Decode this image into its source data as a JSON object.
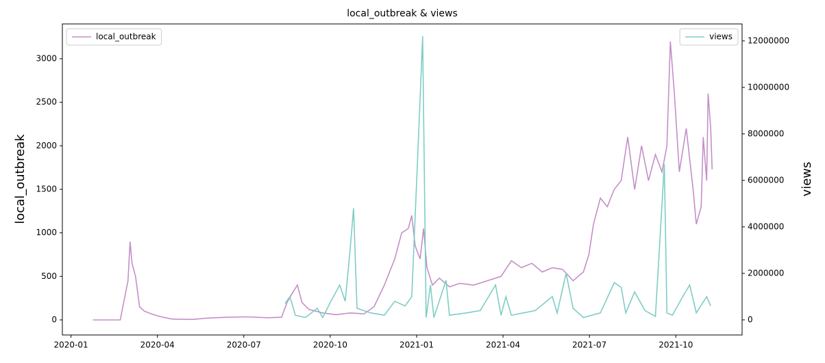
{
  "chart_data": {
    "type": "line",
    "title": "local_outbreak & views",
    "ylabel": "local_outbreak",
    "y2label": "views",
    "xlim": [
      -0.3,
      23.3
    ],
    "xticks": [
      {
        "value": 0,
        "label": "2020-01"
      },
      {
        "value": 3,
        "label": "2020-04"
      },
      {
        "value": 6,
        "label": "2020-07"
      },
      {
        "value": 9,
        "label": "2020-10"
      },
      {
        "value": 12,
        "label": "2021-01"
      },
      {
        "value": 15,
        "label": "2021-04"
      },
      {
        "value": 18,
        "label": "2021-07"
      },
      {
        "value": 21,
        "label": "2021-10"
      }
    ],
    "ylim": [
      -173,
      3400
    ],
    "yticks": [
      0,
      500,
      1000,
      1500,
      2000,
      2500,
      3000
    ],
    "y2lim": [
      -650000,
      12730000
    ],
    "y2ticks": [
      0,
      2000000,
      4000000,
      6000000,
      8000000,
      10000000,
      12000000
    ],
    "series": [
      {
        "name": "local_outbreak",
        "color": "#c38fc6",
        "legend": "upper left",
        "x": [
          0.76,
          1.71,
          1.83,
          1.98,
          2.05,
          2.12,
          2.24,
          2.38,
          2.55,
          2.79,
          3.07,
          3.5,
          4.21,
          4.69,
          5.4,
          6.12,
          6.83,
          7.31,
          7.5,
          7.67,
          7.86,
          8.02,
          8.26,
          8.74,
          9.21,
          9.69,
          10.17,
          10.52,
          10.88,
          11.24,
          11.48,
          11.71,
          11.83,
          11.95,
          12.12,
          12.24,
          12.36,
          12.55,
          12.79,
          13.14,
          13.5,
          13.98,
          14.45,
          14.93,
          15.29,
          15.64,
          16.0,
          16.36,
          16.71,
          17.07,
          17.43,
          17.79,
          17.98,
          18.14,
          18.38,
          18.62,
          18.86,
          19.1,
          19.33,
          19.57,
          19.81,
          20.05,
          20.29,
          20.52,
          20.69,
          20.81,
          20.95,
          21.12,
          21.36,
          21.6,
          21.71,
          21.88,
          21.95,
          22.07,
          22.12,
          22.21,
          22.26
        ],
        "values": [
          0,
          0,
          200,
          450,
          900,
          650,
          500,
          150,
          100,
          70,
          40,
          10,
          5,
          20,
          30,
          35,
          25,
          30,
          200,
          300,
          400,
          200,
          120,
          80,
          60,
          80,
          70,
          150,
          400,
          700,
          1000,
          1050,
          1200,
          850,
          700,
          1050,
          600,
          400,
          480,
          380,
          420,
          400,
          450,
          500,
          680,
          600,
          650,
          550,
          600,
          580,
          450,
          550,
          750,
          1100,
          1400,
          1300,
          1500,
          1600,
          2100,
          1500,
          2000,
          1600,
          1900,
          1700,
          2000,
          3200,
          2600,
          1700,
          2200,
          1500,
          1100,
          1300,
          2100,
          1600,
          2600,
          2200,
          1730
        ]
      },
      {
        "name": "views",
        "color": "#7dcdc5",
        "axis": "y2",
        "legend": "upper right",
        "x": [
          7.43,
          7.6,
          7.79,
          8.14,
          8.55,
          8.74,
          8.98,
          9.33,
          9.52,
          9.69,
          9.81,
          9.93,
          10.4,
          10.88,
          11.24,
          11.6,
          11.83,
          12.07,
          12.21,
          12.33,
          12.48,
          12.6,
          13.02,
          13.14,
          13.74,
          14.21,
          14.74,
          14.93,
          15.1,
          15.29,
          16.12,
          16.71,
          16.88,
          17.19,
          17.43,
          17.79,
          18.38,
          18.86,
          19.1,
          19.26,
          19.57,
          19.93,
          20.29,
          20.45,
          20.6,
          20.69,
          20.88,
          21.24,
          21.48,
          21.71,
          22.07,
          22.21
        ],
        "values": [
          700000,
          1000000,
          200000,
          100000,
          500000,
          100000,
          700000,
          1500000,
          800000,
          3000000,
          4800000,
          500000,
          300000,
          200000,
          800000,
          600000,
          1000000,
          8000000,
          12200000,
          100000,
          1500000,
          100000,
          1700000,
          200000,
          300000,
          400000,
          1500000,
          200000,
          1000000,
          200000,
          400000,
          1000000,
          300000,
          2000000,
          500000,
          100000,
          300000,
          1600000,
          1400000,
          300000,
          1200000,
          400000,
          150000,
          3500000,
          6700000,
          300000,
          200000,
          1000000,
          1500000,
          300000,
          1000000,
          600000
        ]
      }
    ]
  }
}
